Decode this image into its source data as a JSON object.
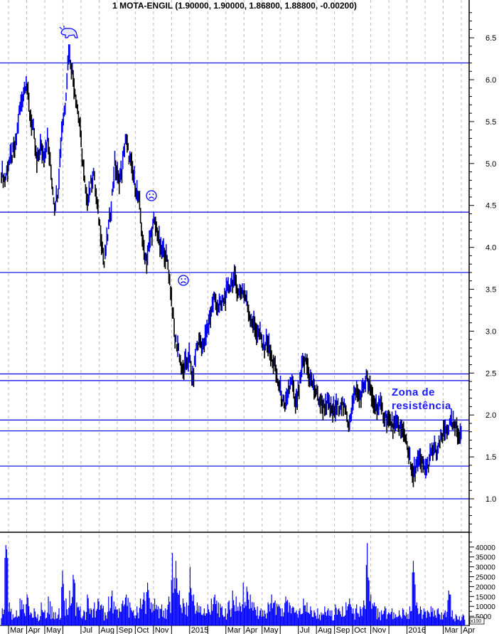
{
  "chart_data": {
    "type": "ohlc-bar",
    "title": "1 MOTA-ENGIL (1.90000, 1.90000, 1.86800, 1.88800, -0.00200)",
    "price_axis": {
      "ticks": [
        1.0,
        1.5,
        2.0,
        2.5,
        3.0,
        3.5,
        4.0,
        4.5,
        5.0,
        5.5,
        6.0,
        6.5
      ],
      "labels": [
        "1.0",
        "1.5",
        "2.0",
        "2.5",
        "3.0",
        "3.5",
        "4.0",
        "4.5",
        "5.0",
        "5.5",
        "6.0",
        "6.5"
      ],
      "ylim": [
        0.55,
        6.8
      ],
      "position": "right"
    },
    "volume_axis": {
      "ticks": [
        5000,
        10000,
        15000,
        20000,
        25000,
        30000,
        35000,
        40000
      ],
      "labels": [
        "5000",
        "10000",
        "15000",
        "20000",
        "25000",
        "30000",
        "35000",
        "40000"
      ],
      "unit": "x100",
      "ylim": [
        0,
        43000
      ]
    },
    "x_axis": {
      "months": [
        "Mar",
        "Apr",
        "May",
        "",
        "Jul",
        "Aug",
        "Sep",
        "Oct",
        "Nov",
        "",
        "2015",
        "",
        "Mar",
        "Apr",
        "May",
        "",
        "Jul",
        "Aug",
        "Sep",
        "Oct",
        "Nov",
        "",
        "2016",
        "",
        "Mar",
        "Apr"
      ]
    },
    "grid": "vertical dashed at month boundaries",
    "up_color": "#0000ff",
    "down_color": "#000000",
    "price_close": [
      4.9,
      4.8,
      5.0,
      5.1,
      5.2,
      5.6,
      5.8,
      6.0,
      5.6,
      5.4,
      5.0,
      5.2,
      5.1,
      5.3,
      4.9,
      4.5,
      4.7,
      5.4,
      5.7,
      6.35,
      6.1,
      5.8,
      5.5,
      5.0,
      4.55,
      4.7,
      4.9,
      4.5,
      4.2,
      3.8,
      4.15,
      4.5,
      5.0,
      4.8,
      4.9,
      5.3,
      5.1,
      4.9,
      4.7,
      4.5,
      4.0,
      3.85,
      4.1,
      4.3,
      4.2,
      3.95,
      3.95,
      3.8,
      3.4,
      2.9,
      2.8,
      2.5,
      2.6,
      2.7,
      2.4,
      2.8,
      2.9,
      2.8,
      3.0,
      3.2,
      3.4,
      3.3,
      3.3,
      3.4,
      3.5,
      3.6,
      3.6,
      3.45,
      3.5,
      3.4,
      3.2,
      3.1,
      3.0,
      2.95,
      2.8,
      2.9,
      2.7,
      2.6,
      2.4,
      2.25,
      2.05,
      2.3,
      2.4,
      2.1,
      2.3,
      2.6,
      2.65,
      2.45,
      2.35,
      2.25,
      2.15,
      2.1,
      2.15,
      2.05,
      2.05,
      2.1,
      2.15,
      2.05,
      1.9,
      2.1,
      2.3,
      2.2,
      2.3,
      2.45,
      2.3,
      2.15,
      2.1,
      2.1,
      2.0,
      1.95,
      1.9,
      1.85,
      1.9,
      1.8,
      1.75,
      1.55,
      1.25,
      1.4,
      1.45,
      1.4,
      1.35,
      1.5,
      1.6,
      1.55,
      1.7,
      1.8,
      1.85,
      1.9,
      1.85,
      1.75,
      1.88
    ],
    "volume": [
      9000,
      41000,
      12000,
      6000,
      8000,
      14000,
      11000,
      16000,
      7000,
      9000,
      6000,
      12000,
      8000,
      15000,
      10000,
      7000,
      9000,
      28000,
      14000,
      18000,
      26000,
      12000,
      10000,
      8000,
      16000,
      9000,
      12000,
      14000,
      11000,
      7000,
      15000,
      18000,
      10000,
      9000,
      13000,
      16000,
      12000,
      8000,
      10000,
      14000,
      17000,
      22000,
      12000,
      14000,
      10000,
      11000,
      9000,
      15000,
      37000,
      33000,
      18000,
      14000,
      12000,
      30000,
      16000,
      12000,
      10000,
      9000,
      11000,
      14000,
      16000,
      12000,
      10000,
      9000,
      13000,
      18000,
      15000,
      12000,
      22000,
      20000,
      16000,
      12000,
      10000,
      9000,
      8000,
      12000,
      16000,
      13000,
      11000,
      9000,
      15000,
      12000,
      10000,
      8000,
      9000,
      14000,
      12000,
      10000,
      8000,
      9000,
      7000,
      10000,
      9000,
      8000,
      11000,
      9000,
      10000,
      12000,
      14000,
      9000,
      11000,
      10000,
      13000,
      42000,
      16000,
      12000,
      9000,
      8000,
      10000,
      7000,
      9000,
      6000,
      8000,
      9000,
      7000,
      10000,
      33000,
      12000,
      10000,
      9000,
      8000,
      10000,
      8000,
      9000,
      7000,
      8000,
      18000,
      8000,
      6000,
      5000,
      6000
    ],
    "horizontal_lines": [
      6.2,
      4.42,
      3.7,
      2.49,
      2.41,
      1.94,
      1.81,
      1.39,
      1.0
    ],
    "annotation": [
      "Zona de",
      "resistência"
    ],
    "markers": [
      {
        "icon": "bull-icon",
        "near_price": 6.8
      },
      {
        "icon": "sad-face-icon",
        "near_price": 4.6
      },
      {
        "icon": "sad-face-icon",
        "near_price": 3.6
      }
    ]
  }
}
